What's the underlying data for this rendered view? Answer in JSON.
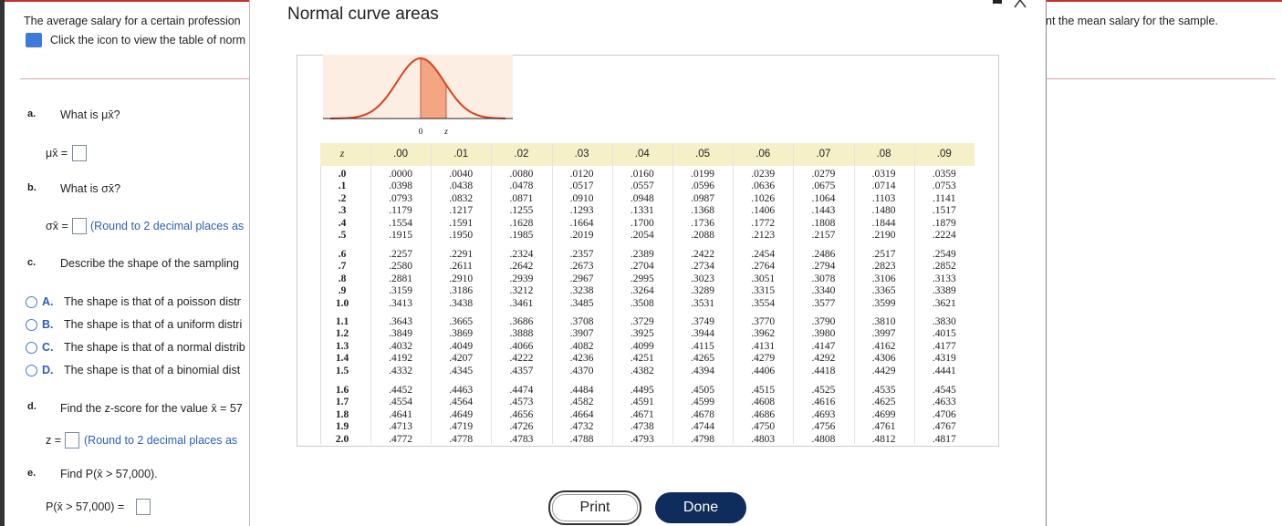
{
  "question": {
    "intro": "The average salary for a certain profession",
    "intro_tail": "nt the mean salary for the sample.",
    "icon_hint": "Click the icon to view the table of norm"
  },
  "parts": [
    {
      "letter": "a.",
      "prompt": "What is μx̄?",
      "answer_label": "μx̄ ="
    },
    {
      "letter": "b.",
      "prompt": "What is σx̄?",
      "answer_label": "σx̄ =",
      "hint": "(Round to 2 decimal places as"
    },
    {
      "letter": "c.",
      "prompt": "Describe the shape of the sampling"
    },
    {
      "letter": "d.",
      "prompt": "Find the z-score for the value x̄ = 57",
      "answer_label": "z =",
      "hint": "(Round to 2 decimal places as"
    },
    {
      "letter": "e.",
      "prompt": "Find P(x̄ > 57,000).",
      "answer_label": "P(x̄ > 57,000) ="
    }
  ],
  "options": [
    {
      "letter": "A.",
      "text": "The shape is that of a poisson distr"
    },
    {
      "letter": "B.",
      "text": "The shape is that of a uniform distri"
    },
    {
      "letter": "C.",
      "text": "The shape is that of a normal distrib"
    },
    {
      "letter": "D.",
      "text": "The shape is that of a binomial dist"
    }
  ],
  "modal": {
    "title": "Normal curve areas",
    "figure": {
      "zero": "0",
      "z": "z"
    },
    "table": {
      "header": [
        "z",
        ".00",
        ".01",
        ".02",
        ".03",
        ".04",
        ".05",
        ".06",
        ".07",
        ".08",
        ".09"
      ],
      "rows": [
        [
          ".0",
          ".0000",
          ".0040",
          ".0080",
          ".0120",
          ".0160",
          ".0199",
          ".0239",
          ".0279",
          ".0319",
          ".0359"
        ],
        [
          ".1",
          ".0398",
          ".0438",
          ".0478",
          ".0517",
          ".0557",
          ".0596",
          ".0636",
          ".0675",
          ".0714",
          ".0753"
        ],
        [
          ".2",
          ".0793",
          ".0832",
          ".0871",
          ".0910",
          ".0948",
          ".0987",
          ".1026",
          ".1064",
          ".1103",
          ".1141"
        ],
        [
          ".3",
          ".1179",
          ".1217",
          ".1255",
          ".1293",
          ".1331",
          ".1368",
          ".1406",
          ".1443",
          ".1480",
          ".1517"
        ],
        [
          ".4",
          ".1554",
          ".1591",
          ".1628",
          ".1664",
          ".1700",
          ".1736",
          ".1772",
          ".1808",
          ".1844",
          ".1879"
        ],
        [
          ".5",
          ".1915",
          ".1950",
          ".1985",
          ".2019",
          ".2054",
          ".2088",
          ".2123",
          ".2157",
          ".2190",
          ".2224"
        ],
        [
          ".6",
          ".2257",
          ".2291",
          ".2324",
          ".2357",
          ".2389",
          ".2422",
          ".2454",
          ".2486",
          ".2517",
          ".2549"
        ],
        [
          ".7",
          ".2580",
          ".2611",
          ".2642",
          ".2673",
          ".2704",
          ".2734",
          ".2764",
          ".2794",
          ".2823",
          ".2852"
        ],
        [
          ".8",
          ".2881",
          ".2910",
          ".2939",
          ".2967",
          ".2995",
          ".3023",
          ".3051",
          ".3078",
          ".3106",
          ".3133"
        ],
        [
          ".9",
          ".3159",
          ".3186",
          ".3212",
          ".3238",
          ".3264",
          ".3289",
          ".3315",
          ".3340",
          ".3365",
          ".3389"
        ],
        [
          "1.0",
          ".3413",
          ".3438",
          ".3461",
          ".3485",
          ".3508",
          ".3531",
          ".3554",
          ".3577",
          ".3599",
          ".3621"
        ],
        [
          "1.1",
          ".3643",
          ".3665",
          ".3686",
          ".3708",
          ".3729",
          ".3749",
          ".3770",
          ".3790",
          ".3810",
          ".3830"
        ],
        [
          "1.2",
          ".3849",
          ".3869",
          ".3888",
          ".3907",
          ".3925",
          ".3944",
          ".3962",
          ".3980",
          ".3997",
          ".4015"
        ],
        [
          "1.3",
          ".4032",
          ".4049",
          ".4066",
          ".4082",
          ".4099",
          ".4115",
          ".4131",
          ".4147",
          ".4162",
          ".4177"
        ],
        [
          "1.4",
          ".4192",
          ".4207",
          ".4222",
          ".4236",
          ".4251",
          ".4265",
          ".4279",
          ".4292",
          ".4306",
          ".4319"
        ],
        [
          "1.5",
          ".4332",
          ".4345",
          ".4357",
          ".4370",
          ".4382",
          ".4394",
          ".4406",
          ".4418",
          ".4429",
          ".4441"
        ],
        [
          "1.6",
          ".4452",
          ".4463",
          ".4474",
          ".4484",
          ".4495",
          ".4505",
          ".4515",
          ".4525",
          ".4535",
          ".4545"
        ],
        [
          "1.7",
          ".4554",
          ".4564",
          ".4573",
          ".4582",
          ".4591",
          ".4599",
          ".4608",
          ".4616",
          ".4625",
          ".4633"
        ],
        [
          "1.8",
          ".4641",
          ".4649",
          ".4656",
          ".4664",
          ".4671",
          ".4678",
          ".4686",
          ".4693",
          ".4699",
          ".4706"
        ],
        [
          "1.9",
          ".4713",
          ".4719",
          ".4726",
          ".4732",
          ".4738",
          ".4744",
          ".4750",
          ".4756",
          ".4761",
          ".4767"
        ],
        [
          "2.0",
          ".4772",
          ".4778",
          ".4783",
          ".4788",
          ".4793",
          ".4798",
          ".4803",
          ".4808",
          ".4812",
          ".4817"
        ]
      ]
    },
    "buttons": {
      "print": "Print",
      "done": "Done"
    }
  }
}
